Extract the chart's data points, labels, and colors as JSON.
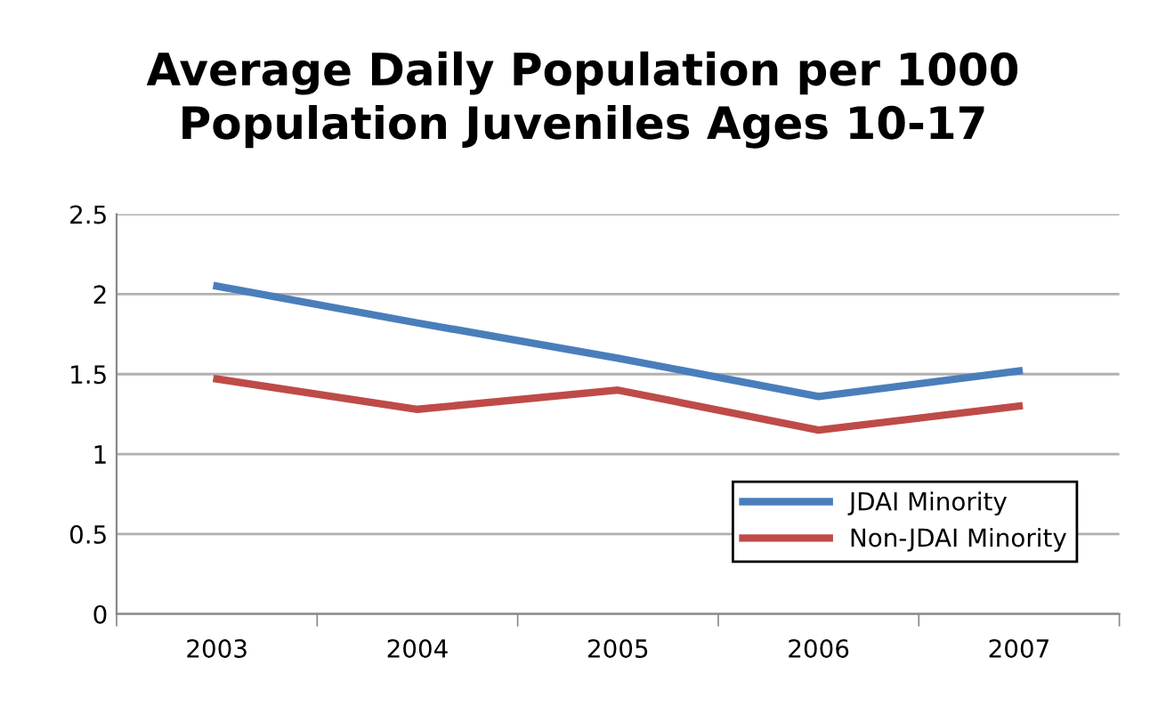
{
  "chart_data": {
    "type": "line",
    "title": "Average Daily Population per 1000\nPopulation Juveniles Ages 10-17",
    "categories": [
      "2003",
      "2004",
      "2005",
      "2006",
      "2007"
    ],
    "series": [
      {
        "name": "JDAI Minority",
        "color": "#4a7ebb",
        "values": [
          2.05,
          1.82,
          1.6,
          1.36,
          1.52
        ]
      },
      {
        "name": "Non-JDAI Minority",
        "color": "#be4b48",
        "values": [
          1.47,
          1.28,
          1.4,
          1.15,
          1.3
        ]
      }
    ],
    "ylim": [
      0,
      2.5
    ],
    "yticks": [
      0,
      0.5,
      1,
      1.5,
      2,
      2.5
    ],
    "grid": "y",
    "legend": "bottom right",
    "marker": "none",
    "line_style": "solid"
  }
}
